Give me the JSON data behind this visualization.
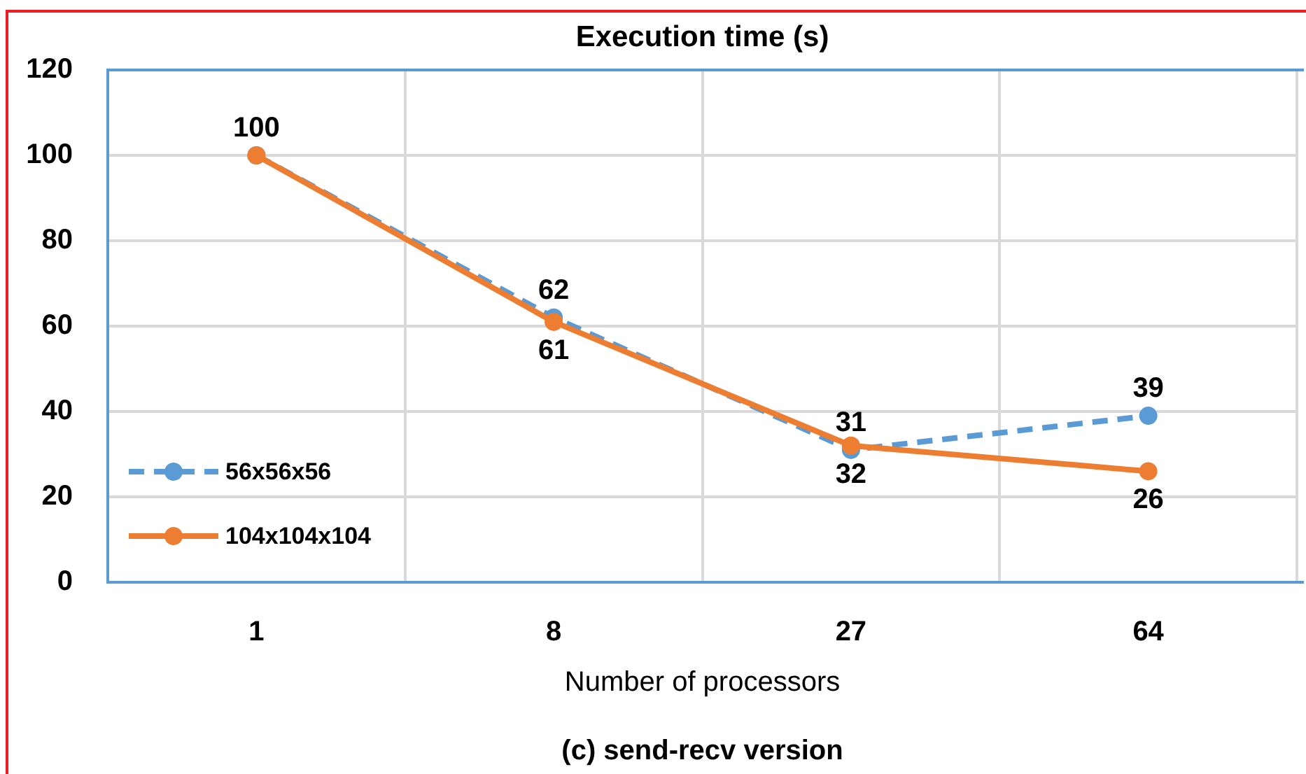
{
  "chart_data": {
    "type": "line",
    "title": "Execution time (s)",
    "xlabel": "Number of processors",
    "annotations": [
      "(c) send-recv version"
    ],
    "categories": [
      "1",
      "8",
      "27",
      "64"
    ],
    "series": [
      {
        "name": "56x56x56",
        "color": "#5b9bd5",
        "values": [
          100,
          62,
          31,
          39
        ],
        "value_labels": [
          "100",
          "62",
          "31",
          "39"
        ],
        "line_style": "dashed"
      },
      {
        "name": "104x104x104",
        "color": "#ed7d31",
        "values": [
          100,
          61,
          32,
          26
        ],
        "value_labels": [
          null,
          "61",
          "32",
          "26"
        ],
        "line_style": "solid"
      }
    ],
    "ylim": [
      0,
      120
    ],
    "yticks": [
      0,
      20,
      40,
      60,
      80,
      100,
      120
    ],
    "grid": true,
    "legend": "bottom left",
    "marker": "circle"
  }
}
